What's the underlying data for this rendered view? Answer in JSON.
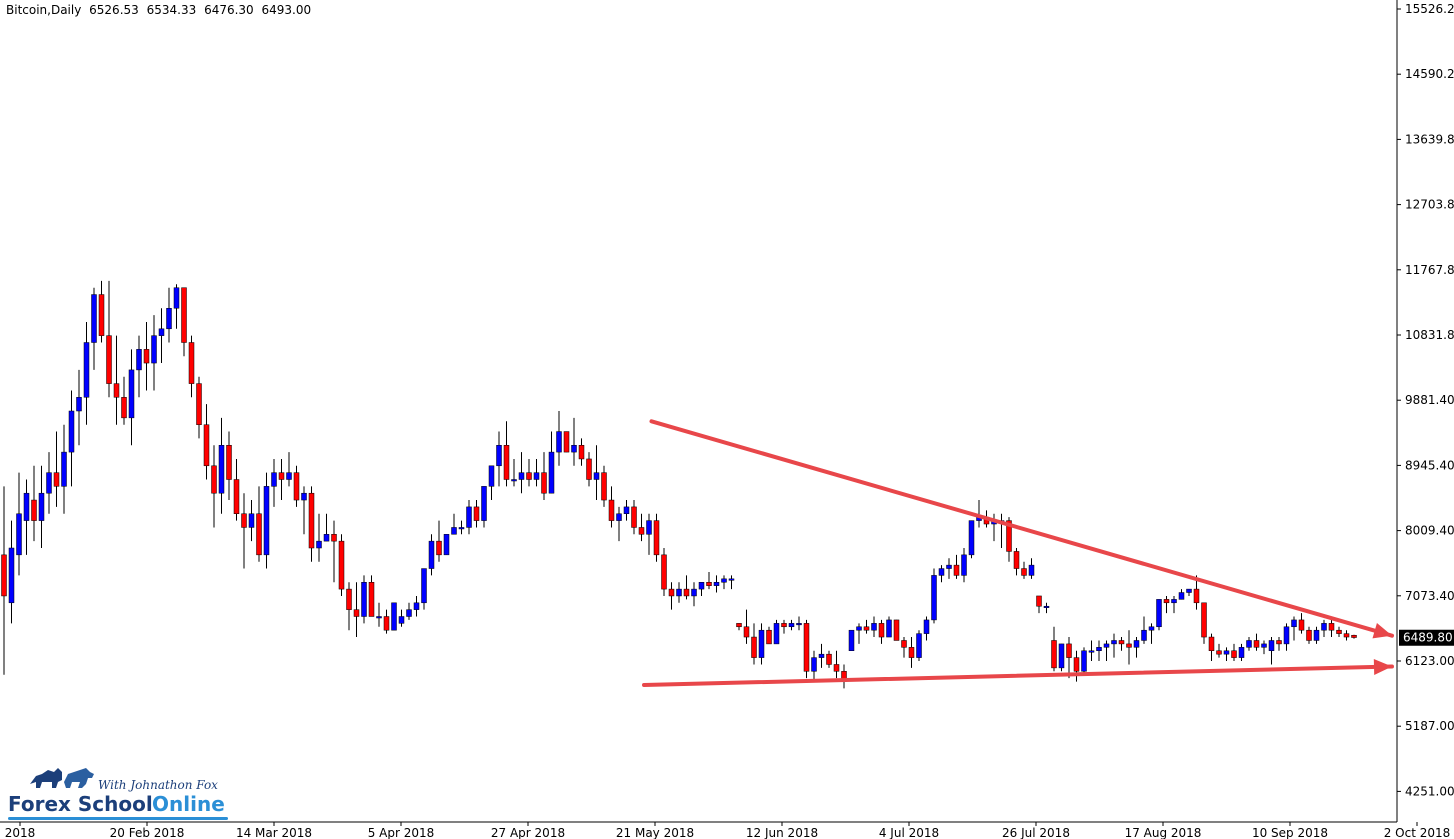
{
  "header": {
    "symbol": "Bitcoin,Daily",
    "open": "6526.53",
    "high": "6534.33",
    "low": "6476.30",
    "close": "6493.00"
  },
  "logo": {
    "tagline": "With Johnathon Fox",
    "brand_part1": "Forex School",
    "brand_part2": "Online"
  },
  "colors": {
    "bull": "#0000ff",
    "bear": "#ff0000",
    "trendline": "#e8474a",
    "axis": "#000000",
    "price_tag_bg": "#000000",
    "price_tag_text": "#ffffff"
  },
  "chart_data": {
    "type": "candlestick",
    "instrument": "Bitcoin",
    "timeframe": "Daily",
    "ylim": [
      3800,
      15800
    ],
    "y_ticks": [
      "15526.2",
      "14590.2",
      "13639.8",
      "12703.8",
      "11767.8",
      "10831.8",
      "9881.40",
      "8945.40",
      "8009.40",
      "7073.40",
      "6123.00",
      "5187.00",
      "4251.00"
    ],
    "x_ticks": [
      "2018",
      "20 Feb 2018",
      "14 Mar 2018",
      "5 Apr 2018",
      "27 Apr 2018",
      "21 May 2018",
      "12 Jun 2018",
      "4 Jul 2018",
      "26 Jul 2018",
      "17 Aug 2018",
      "10 Sep 2018",
      "2 Oct 2018"
    ],
    "current_price": "6489.80",
    "candles": [
      {
        "o": 7700,
        "h": 8700,
        "l": 5950,
        "c": 7100
      },
      {
        "o": 7000,
        "h": 8200,
        "l": 6700,
        "c": 7800
      },
      {
        "o": 7700,
        "h": 8900,
        "l": 7400,
        "c": 8300
      },
      {
        "o": 8200,
        "h": 8800,
        "l": 7700,
        "c": 8600
      },
      {
        "o": 8500,
        "h": 9000,
        "l": 7900,
        "c": 8200
      },
      {
        "o": 8200,
        "h": 9000,
        "l": 7800,
        "c": 8600
      },
      {
        "o": 8600,
        "h": 9200,
        "l": 8300,
        "c": 8900
      },
      {
        "o": 8900,
        "h": 9500,
        "l": 8400,
        "c": 8700
      },
      {
        "o": 8700,
        "h": 9600,
        "l": 8300,
        "c": 9200
      },
      {
        "o": 9200,
        "h": 10100,
        "l": 8700,
        "c": 9800
      },
      {
        "o": 9800,
        "h": 10400,
        "l": 9300,
        "c": 10000
      },
      {
        "o": 10000,
        "h": 11100,
        "l": 9600,
        "c": 10800
      },
      {
        "o": 10800,
        "h": 11600,
        "l": 10400,
        "c": 11500
      },
      {
        "o": 11500,
        "h": 11700,
        "l": 10800,
        "c": 10900
      },
      {
        "o": 10900,
        "h": 11700,
        "l": 10000,
        "c": 10200
      },
      {
        "o": 10200,
        "h": 10900,
        "l": 9600,
        "c": 10000
      },
      {
        "o": 10000,
        "h": 10300,
        "l": 9600,
        "c": 9700
      },
      {
        "o": 9700,
        "h": 10700,
        "l": 9300,
        "c": 10400
      },
      {
        "o": 10400,
        "h": 10900,
        "l": 10000,
        "c": 10700
      },
      {
        "o": 10700,
        "h": 11100,
        "l": 10100,
        "c": 10500
      },
      {
        "o": 10500,
        "h": 11200,
        "l": 10100,
        "c": 10900
      },
      {
        "o": 10900,
        "h": 11300,
        "l": 10500,
        "c": 11000
      },
      {
        "o": 11000,
        "h": 11600,
        "l": 10800,
        "c": 11300
      },
      {
        "o": 11300,
        "h": 11650,
        "l": 11000,
        "c": 11600
      },
      {
        "o": 11600,
        "h": 11600,
        "l": 10600,
        "c": 10800
      },
      {
        "o": 10800,
        "h": 10900,
        "l": 10000,
        "c": 10200
      },
      {
        "o": 10200,
        "h": 10300,
        "l": 9400,
        "c": 9600
      },
      {
        "o": 9600,
        "h": 9900,
        "l": 8800,
        "c": 9000
      },
      {
        "o": 9000,
        "h": 9300,
        "l": 8100,
        "c": 8600
      },
      {
        "o": 8600,
        "h": 9700,
        "l": 8300,
        "c": 9300
      },
      {
        "o": 9300,
        "h": 9500,
        "l": 8500,
        "c": 8800
      },
      {
        "o": 8800,
        "h": 9100,
        "l": 8200,
        "c": 8300
      },
      {
        "o": 8300,
        "h": 8600,
        "l": 7500,
        "c": 8100
      },
      {
        "o": 8100,
        "h": 8500,
        "l": 7900,
        "c": 8300
      },
      {
        "o": 8300,
        "h": 8700,
        "l": 7600,
        "c": 7700
      },
      {
        "o": 7700,
        "h": 8900,
        "l": 7500,
        "c": 8700
      },
      {
        "o": 8700,
        "h": 9100,
        "l": 8400,
        "c": 8900
      },
      {
        "o": 8900,
        "h": 9100,
        "l": 8500,
        "c": 8800
      },
      {
        "o": 8800,
        "h": 9200,
        "l": 8700,
        "c": 8900
      },
      {
        "o": 8900,
        "h": 9000,
        "l": 8400,
        "c": 8500
      },
      {
        "o": 8500,
        "h": 8700,
        "l": 8000,
        "c": 8600
      },
      {
        "o": 8600,
        "h": 8700,
        "l": 7600,
        "c": 7800
      },
      {
        "o": 7800,
        "h": 8300,
        "l": 7600,
        "c": 7900
      },
      {
        "o": 7900,
        "h": 8300,
        "l": 7900,
        "c": 8000
      },
      {
        "o": 8000,
        "h": 8200,
        "l": 7300,
        "c": 7900
      },
      {
        "o": 7900,
        "h": 8000,
        "l": 7100,
        "c": 7200
      },
      {
        "o": 7200,
        "h": 7300,
        "l": 6600,
        "c": 6900
      },
      {
        "o": 6900,
        "h": 7300,
        "l": 6500,
        "c": 6800
      },
      {
        "o": 6800,
        "h": 7400,
        "l": 6700,
        "c": 7300
      },
      {
        "o": 7300,
        "h": 7400,
        "l": 6800,
        "c": 6800
      },
      {
        "o": 6800,
        "h": 7000,
        "l": 6650,
        "c": 6800
      },
      {
        "o": 6800,
        "h": 6900,
        "l": 6550,
        "c": 6600
      },
      {
        "o": 6600,
        "h": 7000,
        "l": 6600,
        "c": 7000
      },
      {
        "o": 6700,
        "h": 6900,
        "l": 6650,
        "c": 6800
      },
      {
        "o": 6800,
        "h": 7000,
        "l": 6750,
        "c": 6900
      },
      {
        "o": 6900,
        "h": 7100,
        "l": 6800,
        "c": 7000
      },
      {
        "o": 7000,
        "h": 7500,
        "l": 6900,
        "c": 7500
      },
      {
        "o": 7500,
        "h": 8000,
        "l": 7400,
        "c": 7900
      },
      {
        "o": 7900,
        "h": 8200,
        "l": 7600,
        "c": 7700
      },
      {
        "o": 7700,
        "h": 8000,
        "l": 7700,
        "c": 8000
      },
      {
        "o": 8000,
        "h": 8300,
        "l": 8000,
        "c": 8100
      },
      {
        "o": 8100,
        "h": 8200,
        "l": 8000,
        "c": 8100
      },
      {
        "o": 8100,
        "h": 8500,
        "l": 8000,
        "c": 8400
      },
      {
        "o": 8400,
        "h": 8500,
        "l": 8100,
        "c": 8200
      },
      {
        "o": 8200,
        "h": 8700,
        "l": 8100,
        "c": 8700
      },
      {
        "o": 8700,
        "h": 8900,
        "l": 8500,
        "c": 9000
      },
      {
        "o": 9000,
        "h": 9500,
        "l": 8700,
        "c": 9300
      },
      {
        "o": 9300,
        "h": 9650,
        "l": 8700,
        "c": 8800
      },
      {
        "o": 8800,
        "h": 9100,
        "l": 8700,
        "c": 8800
      },
      {
        "o": 8800,
        "h": 9200,
        "l": 8600,
        "c": 8900
      },
      {
        "o": 8900,
        "h": 9100,
        "l": 8700,
        "c": 8800
      },
      {
        "o": 8800,
        "h": 9100,
        "l": 8700,
        "c": 8900
      },
      {
        "o": 8900,
        "h": 9200,
        "l": 8500,
        "c": 8600
      },
      {
        "o": 8600,
        "h": 9500,
        "l": 8600,
        "c": 9200
      },
      {
        "o": 9200,
        "h": 9800,
        "l": 9000,
        "c": 9500
      },
      {
        "o": 9500,
        "h": 9500,
        "l": 9200,
        "c": 9200
      },
      {
        "o": 9200,
        "h": 9700,
        "l": 9000,
        "c": 9300
      },
      {
        "o": 9300,
        "h": 9400,
        "l": 9000,
        "c": 9100
      },
      {
        "o": 9100,
        "h": 9200,
        "l": 8700,
        "c": 8800
      },
      {
        "o": 8800,
        "h": 9300,
        "l": 8500,
        "c": 8900
      },
      {
        "o": 8900,
        "h": 9000,
        "l": 8400,
        "c": 8500
      },
      {
        "o": 8500,
        "h": 8700,
        "l": 8100,
        "c": 8200
      },
      {
        "o": 8200,
        "h": 8400,
        "l": 7900,
        "c": 8300
      },
      {
        "o": 8300,
        "h": 8500,
        "l": 8200,
        "c": 8400
      },
      {
        "o": 8400,
        "h": 8500,
        "l": 8000,
        "c": 8100
      },
      {
        "o": 8100,
        "h": 8300,
        "l": 7900,
        "c": 8000
      },
      {
        "o": 8000,
        "h": 8300,
        "l": 7700,
        "c": 8200
      },
      {
        "o": 8200,
        "h": 8300,
        "l": 7600,
        "c": 7700
      },
      {
        "o": 7700,
        "h": 7800,
        "l": 7100,
        "c": 7200
      },
      {
        "o": 7200,
        "h": 7300,
        "l": 6900,
        "c": 7100
      },
      {
        "o": 7100,
        "h": 7300,
        "l": 7000,
        "c": 7200
      },
      {
        "o": 7200,
        "h": 7400,
        "l": 7050,
        "c": 7100
      },
      {
        "o": 7100,
        "h": 7300,
        "l": 6950,
        "c": 7200
      },
      {
        "o": 7200,
        "h": 7300,
        "l": 7100,
        "c": 7300
      },
      {
        "o": 7300,
        "h": 7450,
        "l": 7200,
        "c": 7250
      },
      {
        "o": 7250,
        "h": 7400,
        "l": 7150,
        "c": 7300
      },
      {
        "o": 7300,
        "h": 7400,
        "l": 7200,
        "c": 7350
      },
      {
        "o": 7350,
        "h": 7400,
        "l": 7200,
        "c": 7350
      },
      {
        "o": 6700,
        "h": 6700,
        "l": 6600,
        "c": 6650
      },
      {
        "o": 6650,
        "h": 6900,
        "l": 6400,
        "c": 6500
      },
      {
        "o": 6500,
        "h": 6700,
        "l": 6100,
        "c": 6200
      },
      {
        "o": 6200,
        "h": 6700,
        "l": 6100,
        "c": 6600
      },
      {
        "o": 6600,
        "h": 6650,
        "l": 6400,
        "c": 6400
      },
      {
        "o": 6400,
        "h": 6750,
        "l": 6400,
        "c": 6700
      },
      {
        "o": 6700,
        "h": 6750,
        "l": 6550,
        "c": 6650
      },
      {
        "o": 6650,
        "h": 6750,
        "l": 6600,
        "c": 6700
      },
      {
        "o": 6700,
        "h": 6800,
        "l": 6600,
        "c": 6700
      },
      {
        "o": 6700,
        "h": 6750,
        "l": 5900,
        "c": 6000
      },
      {
        "o": 6000,
        "h": 6300,
        "l": 5850,
        "c": 6200
      },
      {
        "o": 6200,
        "h": 6400,
        "l": 6050,
        "c": 6250
      },
      {
        "o": 6250,
        "h": 6300,
        "l": 6050,
        "c": 6100
      },
      {
        "o": 6100,
        "h": 6300,
        "l": 5900,
        "c": 6000
      },
      {
        "o": 6000,
        "h": 6100,
        "l": 5750,
        "c": 5850
      },
      {
        "o": 6300,
        "h": 6600,
        "l": 6300,
        "c": 6600
      },
      {
        "o": 6600,
        "h": 6700,
        "l": 6400,
        "c": 6650
      },
      {
        "o": 6650,
        "h": 6750,
        "l": 6550,
        "c": 6600
      },
      {
        "o": 6600,
        "h": 6800,
        "l": 6500,
        "c": 6700
      },
      {
        "o": 6700,
        "h": 6750,
        "l": 6400,
        "c": 6500
      },
      {
        "o": 6500,
        "h": 6800,
        "l": 6500,
        "c": 6750
      },
      {
        "o": 6750,
        "h": 6750,
        "l": 6450,
        "c": 6450
      },
      {
        "o": 6450,
        "h": 6500,
        "l": 6200,
        "c": 6350
      },
      {
        "o": 6350,
        "h": 6500,
        "l": 6050,
        "c": 6200
      },
      {
        "o": 6200,
        "h": 6600,
        "l": 6150,
        "c": 6550
      },
      {
        "o": 6550,
        "h": 6800,
        "l": 6450,
        "c": 6750
      },
      {
        "o": 6750,
        "h": 7500,
        "l": 6700,
        "c": 7400
      },
      {
        "o": 7400,
        "h": 7550,
        "l": 7300,
        "c": 7500
      },
      {
        "o": 7500,
        "h": 7650,
        "l": 7350,
        "c": 7550
      },
      {
        "o": 7550,
        "h": 7700,
        "l": 7350,
        "c": 7400
      },
      {
        "o": 7400,
        "h": 7800,
        "l": 7300,
        "c": 7700
      },
      {
        "o": 7700,
        "h": 8200,
        "l": 7650,
        "c": 8200
      },
      {
        "o": 8200,
        "h": 8500,
        "l": 8100,
        "c": 8250
      },
      {
        "o": 8250,
        "h": 8350,
        "l": 8100,
        "c": 8150
      },
      {
        "o": 8150,
        "h": 8300,
        "l": 7900,
        "c": 8200
      },
      {
        "o": 8200,
        "h": 8300,
        "l": 7800,
        "c": 8200
      },
      {
        "o": 8200,
        "h": 8250,
        "l": 7600,
        "c": 7750
      },
      {
        "o": 7750,
        "h": 7800,
        "l": 7400,
        "c": 7500
      },
      {
        "o": 7500,
        "h": 7600,
        "l": 7350,
        "c": 7400
      },
      {
        "o": 7400,
        "h": 7650,
        "l": 7350,
        "c": 7550
      },
      {
        "o": 7100,
        "h": 7100,
        "l": 6850,
        "c": 6950
      },
      {
        "o": 6950,
        "h": 7000,
        "l": 6850,
        "c": 6950
      },
      {
        "o": 6450,
        "h": 6650,
        "l": 6000,
        "c": 6050
      },
      {
        "o": 6050,
        "h": 6400,
        "l": 6000,
        "c": 6400
      },
      {
        "o": 6400,
        "h": 6500,
        "l": 5900,
        "c": 6200
      },
      {
        "o": 6200,
        "h": 6300,
        "l": 5850,
        "c": 6000
      },
      {
        "o": 6000,
        "h": 6350,
        "l": 5950,
        "c": 6300
      },
      {
        "o": 6300,
        "h": 6450,
        "l": 6150,
        "c": 6300
      },
      {
        "o": 6300,
        "h": 6450,
        "l": 6150,
        "c": 6350
      },
      {
        "o": 6350,
        "h": 6450,
        "l": 6150,
        "c": 6400
      },
      {
        "o": 6400,
        "h": 6550,
        "l": 6200,
        "c": 6450
      },
      {
        "o": 6450,
        "h": 6500,
        "l": 6300,
        "c": 6400
      },
      {
        "o": 6400,
        "h": 6600,
        "l": 6100,
        "c": 6350
      },
      {
        "o": 6350,
        "h": 6500,
        "l": 6200,
        "c": 6450
      },
      {
        "o": 6450,
        "h": 6800,
        "l": 6400,
        "c": 6600
      },
      {
        "o": 6600,
        "h": 6700,
        "l": 6400,
        "c": 6650
      },
      {
        "o": 6650,
        "h": 7050,
        "l": 6600,
        "c": 7050
      },
      {
        "o": 7050,
        "h": 7100,
        "l": 6850,
        "c": 7000
      },
      {
        "o": 7000,
        "h": 7100,
        "l": 6850,
        "c": 7050
      },
      {
        "o": 7050,
        "h": 7200,
        "l": 7050,
        "c": 7150
      },
      {
        "o": 7150,
        "h": 7200,
        "l": 7100,
        "c": 7200
      },
      {
        "o": 7200,
        "h": 7400,
        "l": 6900,
        "c": 7000
      },
      {
        "o": 7000,
        "h": 7000,
        "l": 6400,
        "c": 6500
      },
      {
        "o": 6500,
        "h": 6550,
        "l": 6150,
        "c": 6300
      },
      {
        "o": 6300,
        "h": 6400,
        "l": 6200,
        "c": 6250
      },
      {
        "o": 6250,
        "h": 6350,
        "l": 6150,
        "c": 6300
      },
      {
        "o": 6300,
        "h": 6400,
        "l": 6150,
        "c": 6200
      },
      {
        "o": 6200,
        "h": 6400,
        "l": 6150,
        "c": 6350
      },
      {
        "o": 6350,
        "h": 6500,
        "l": 6300,
        "c": 6450
      },
      {
        "o": 6450,
        "h": 6550,
        "l": 6300,
        "c": 6350
      },
      {
        "o": 6350,
        "h": 6450,
        "l": 6250,
        "c": 6400
      },
      {
        "o": 6300,
        "h": 6500,
        "l": 6100,
        "c": 6450
      },
      {
        "o": 6450,
        "h": 6500,
        "l": 6300,
        "c": 6400
      },
      {
        "o": 6400,
        "h": 6700,
        "l": 6300,
        "c": 6650
      },
      {
        "o": 6650,
        "h": 6800,
        "l": 6450,
        "c": 6750
      },
      {
        "o": 6750,
        "h": 6850,
        "l": 6550,
        "c": 6600
      },
      {
        "o": 6600,
        "h": 6650,
        "l": 6400,
        "c": 6450
      },
      {
        "o": 6450,
        "h": 6650,
        "l": 6400,
        "c": 6600
      },
      {
        "o": 6600,
        "h": 6750,
        "l": 6500,
        "c": 6700
      },
      {
        "o": 6700,
        "h": 6800,
        "l": 6500,
        "c": 6600
      },
      {
        "o": 6600,
        "h": 6650,
        "l": 6500,
        "c": 6550
      },
      {
        "o": 6550,
        "h": 6600,
        "l": 6450,
        "c": 6500
      },
      {
        "o": 6526.53,
        "h": 6534.33,
        "l": 6476.3,
        "c": 6493
      }
    ],
    "trendlines": [
      {
        "name": "descending-resistance",
        "from": {
          "candle": 89,
          "price": 9650
        },
        "to": {
          "candle": 184,
          "price": 6520
        },
        "arrow": true
      },
      {
        "name": "ascending-support",
        "from": {
          "candle": 88,
          "price": 5800
        },
        "to": {
          "candle": 184,
          "price": 6070
        },
        "arrow": true
      }
    ]
  }
}
